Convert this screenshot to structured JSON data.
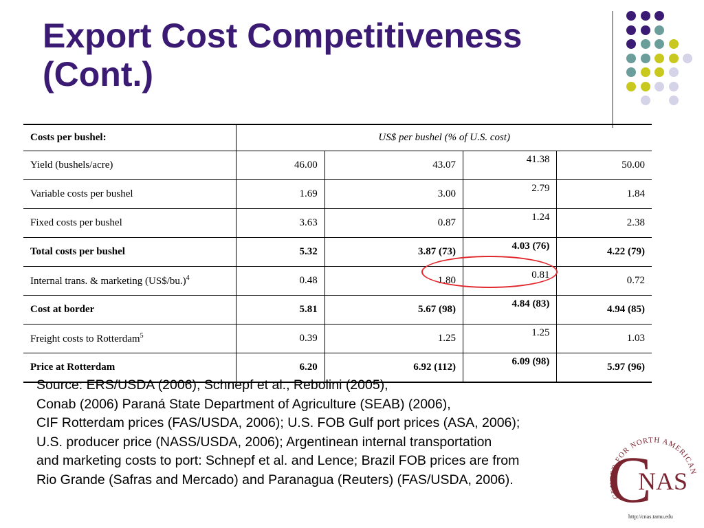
{
  "title": {
    "line1": "Export Cost Competitiveness",
    "line2": "(Cont.)"
  },
  "colors": {
    "title": "#3a1a73",
    "dot_purple": "#3a1a73",
    "dot_teal": "#6b9d9a",
    "dot_yellow": "#c8c81e",
    "dot_lavender": "#d5d3e8",
    "highlight_circle": "#e0262b"
  },
  "decor_dots": [
    [
      "dot_purple",
      "dot_purple",
      "dot_purple",
      "",
      ""
    ],
    [
      "dot_purple",
      "dot_purple",
      "dot_teal",
      "",
      ""
    ],
    [
      "dot_purple",
      "dot_teal",
      "dot_teal",
      "dot_yellow",
      ""
    ],
    [
      "dot_teal",
      "dot_teal",
      "dot_yellow",
      "dot_yellow",
      "dot_lavender"
    ],
    [
      "dot_teal",
      "dot_yellow",
      "dot_yellow",
      "dot_lavender",
      ""
    ],
    [
      "dot_yellow",
      "dot_yellow",
      "dot_lavender",
      "dot_lavender",
      ""
    ],
    [
      "",
      "dot_lavender",
      "",
      "dot_lavender",
      ""
    ]
  ],
  "table": {
    "header_label": "Costs per bushel:",
    "header_unit": "US$ per bushel (% of U.S. cost)",
    "rows": [
      {
        "label": "Yield (bushels/acre)",
        "sup": "",
        "bold": false,
        "values": [
          "46.00",
          "43.07",
          "41.38",
          "50.00"
        ]
      },
      {
        "label": "Variable costs per bushel",
        "sup": "",
        "bold": false,
        "values": [
          "1.69",
          "3.00",
          "2.79",
          "1.84"
        ]
      },
      {
        "label": "Fixed costs per bushel",
        "sup": "",
        "bold": false,
        "values": [
          "3.63",
          "0.87",
          "1.24",
          "2.38"
        ]
      },
      {
        "label": "Total costs per bushel",
        "sup": "",
        "bold": true,
        "values": [
          "5.32",
          "3.87 (73)",
          "4.03 (76)",
          "4.22 (79)"
        ]
      },
      {
        "label": "Internal trans. & marketing (US$/bu.)",
        "sup": "4",
        "bold": false,
        "values": [
          "0.48",
          "1.80",
          "0.81",
          "0.72"
        ]
      },
      {
        "label": "Cost at border",
        "sup": "",
        "bold": true,
        "values": [
          "5.81",
          "5.67 (98)",
          "4.84 (83)",
          "4.94 (85)"
        ]
      },
      {
        "label": "Freight costs to Rotterdam",
        "sup": "5",
        "bold": false,
        "values": [
          "0.39",
          "1.25",
          "1.25",
          "1.03"
        ]
      },
      {
        "label": "Price at Rotterdam",
        "sup": "",
        "bold": true,
        "values": [
          "6.20",
          "6.92 (112)",
          "6.09 (98)",
          "5.97 (96)"
        ]
      }
    ]
  },
  "source_lines": [
    "Source: ERS/USDA (2006), Schnepf et al., Rebolini (2005),",
    "Conab (2006) Paraná State Department of Agriculture (SEAB) (2006),",
    "CIF Rotterdam prices (FAS/USDA, 2006); U.S. FOB Gulf port prices (ASA, 2006);",
    "U.S. producer price (NASS/USDA, 2006); Argentinean internal transportation",
    "and marketing costs to port: Schnepf et al. and Lence; Brazil FOB prices are from",
    "Rio Grande (Safras and Mercado) and Paranagua (Reuters) (FAS/USDA, 2006)."
  ],
  "logo": {
    "ring_text": "CENTER FOR NORTH AMERICAN STUDIES",
    "letter_c": "C",
    "letters_nas": "NAS",
    "url": "http://cnas.tamu.edu",
    "color": "#7a2430"
  }
}
